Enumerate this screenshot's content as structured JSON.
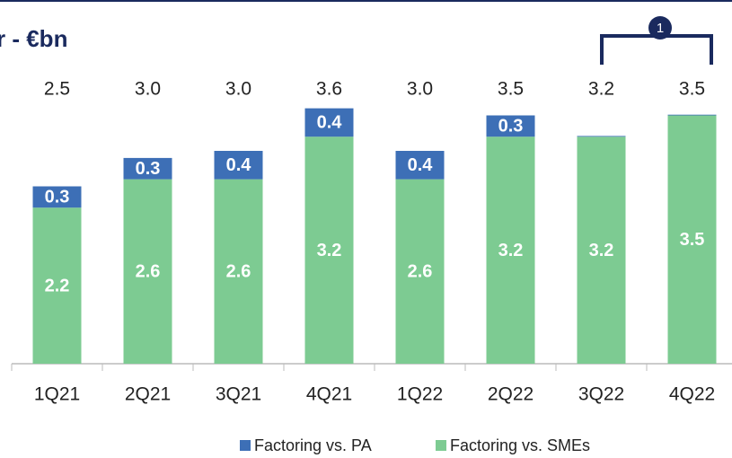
{
  "chart_data": {
    "type": "stacked_bar",
    "title": "r - €bn",
    "annotation": "1",
    "categories": [
      "1Q21",
      "2Q21",
      "3Q21",
      "4Q21",
      "1Q22",
      "2Q22",
      "3Q22",
      "4Q22"
    ],
    "total_labels": [
      "2.5",
      "3.0",
      "3.0",
      "3.6",
      "3.0",
      "3.5",
      "3.2",
      "3.5"
    ],
    "series": [
      {
        "name": "Factoring vs. SMEs",
        "color": "#7dcb92",
        "values": [
          2.2,
          2.6,
          2.6,
          3.2,
          2.6,
          3.2,
          3.2,
          3.5
        ]
      },
      {
        "name": "Factoring vs. PA",
        "color": "#3d6fb6",
        "values": [
          0.3,
          0.3,
          0.4,
          0.4,
          0.4,
          0.3,
          0.01,
          0.01
        ],
        "value_labels": [
          "0.3",
          "0.3",
          "0.4",
          "0.4",
          "0.4",
          "0.3",
          null,
          null
        ]
      }
    ]
  }
}
